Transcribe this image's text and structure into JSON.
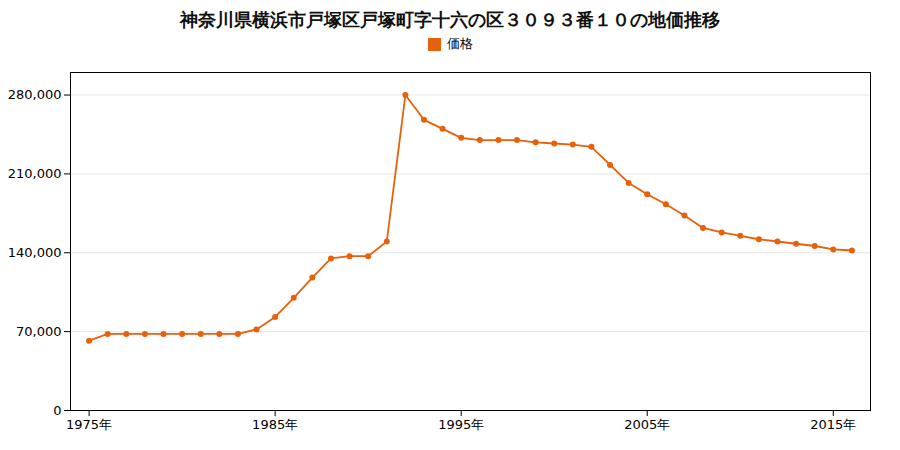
{
  "chart_data": {
    "type": "line",
    "title": "神奈川県横浜市戸塚区戸塚町字十六の区３０９３番１０の地価推移",
    "x": [
      1975,
      1976,
      1977,
      1978,
      1979,
      1980,
      1981,
      1982,
      1983,
      1984,
      1985,
      1986,
      1987,
      1988,
      1989,
      1990,
      1991,
      1992,
      1993,
      1994,
      1995,
      1996,
      1997,
      1998,
      1999,
      2000,
      2001,
      2002,
      2003,
      2004,
      2005,
      2006,
      2007,
      2008,
      2009,
      2010,
      2011,
      2012,
      2013,
      2014,
      2015,
      2016
    ],
    "series": [
      {
        "name": "価格",
        "color": "#e8600a",
        "marker": "circle",
        "values": [
          62000,
          68000,
          68000,
          68000,
          68000,
          68000,
          68000,
          68000,
          68000,
          72000,
          83000,
          100000,
          118000,
          135000,
          137000,
          137000,
          150000,
          280000,
          258000,
          250000,
          242000,
          240000,
          240000,
          240000,
          238000,
          237000,
          236000,
          234000,
          218000,
          202000,
          192000,
          183000,
          173000,
          162000,
          158000,
          155000,
          152000,
          150000,
          148000,
          146000,
          143000,
          142000
        ]
      }
    ],
    "xlim": [
      1974,
      2017
    ],
    "xticks": [
      {
        "value": 1975,
        "label": "1975年"
      },
      {
        "value": 1985,
        "label": "1985年"
      },
      {
        "value": 1995,
        "label": "1995年"
      },
      {
        "value": 2005,
        "label": "2005年"
      },
      {
        "value": 2015,
        "label": "2015年"
      }
    ],
    "ylim": [
      0,
      300000
    ],
    "yticks": [
      0,
      {
        "value": 70000,
        "label": "70,000"
      },
      {
        "value": 140000,
        "label": "140,000"
      },
      {
        "value": 210000,
        "label": "210,000"
      },
      {
        "value": 280000,
        "label": "280,000"
      }
    ],
    "grid": "y",
    "legend": "top"
  }
}
